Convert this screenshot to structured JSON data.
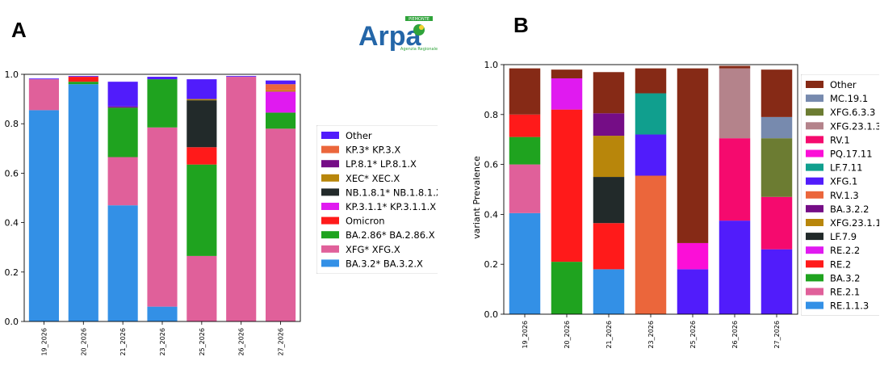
{
  "logo": {
    "text": "Arpa",
    "top_text": "PIEMONTE",
    "bottom_text": "Agenzia Regionale"
  },
  "chart_data": [
    {
      "panel": "A",
      "type": "bar",
      "stacked": true,
      "categories": [
        "19_2026",
        "20_2026",
        "21_2026",
        "23_2026",
        "25_2026",
        "26_2026",
        "27_2026"
      ],
      "ylim": [
        0,
        1.0
      ],
      "yticks": [
        "0.0",
        "0.2",
        "0.4",
        "0.6",
        "0.8",
        "1.0"
      ],
      "ylabel": "",
      "legend_position": "right",
      "series": [
        {
          "name": "BA.3.2* BA.3.2.X",
          "color": "#3390E6",
          "values": [
            0.855,
            0.96,
            0.47,
            0.06,
            0,
            0,
            0
          ]
        },
        {
          "name": "XFG* XFG.X",
          "color": "#E0609A",
          "values": [
            0.125,
            0,
            0.195,
            0.725,
            0.265,
            0.99,
            0.78
          ]
        },
        {
          "name": "BA.2.86* BA.2.86.X",
          "color": "#1FA31F",
          "values": [
            0,
            0.01,
            0.2,
            0.195,
            0.37,
            0,
            0.065
          ]
        },
        {
          "name": "Omicron",
          "color": "#FF1A1A",
          "values": [
            0,
            0.02,
            0,
            0,
            0.07,
            0,
            0
          ]
        },
        {
          "name": "KP.3.1.1* KP.3.1.1.X",
          "color": "#E01AF0",
          "values": [
            0,
            0,
            0,
            0,
            0,
            0,
            0.085
          ]
        },
        {
          "name": "NB.1.8.1* NB.1.8.1.X",
          "color": "#222A2A",
          "values": [
            0,
            0,
            0,
            0,
            0.19,
            0,
            0
          ]
        },
        {
          "name": "XEC* XEC.X",
          "color": "#B8860B",
          "values": [
            0,
            0,
            0,
            0,
            0.005,
            0,
            0.005
          ]
        },
        {
          "name": "LP.8.1* LP.8.1.X",
          "color": "#750D86",
          "values": [
            0,
            0,
            0.005,
            0,
            0,
            0,
            0
          ]
        },
        {
          "name": "KP.3* KP.3.X",
          "color": "#EB663B",
          "values": [
            0,
            0,
            0,
            0,
            0,
            0,
            0.025
          ]
        },
        {
          "name": "Other",
          "color": "#511CFB",
          "values": [
            0.003,
            0.003,
            0.1,
            0.01,
            0.08,
            0.003,
            0.015
          ]
        }
      ]
    },
    {
      "panel": "B",
      "type": "bar",
      "stacked": true,
      "categories": [
        "19_2026",
        "20_2026",
        "21_2026",
        "23_2026",
        "25_2026",
        "26_2026",
        "27_2026"
      ],
      "ylim": [
        0,
        1.0
      ],
      "yticks": [
        "0.0",
        "0.2",
        "0.4",
        "0.6",
        "0.8",
        "1.0"
      ],
      "ylabel": "variant Prevalence",
      "legend_position": "right",
      "series": [
        {
          "name": "RE.1.1.3",
          "color": "#3390E6",
          "values": [
            0.405,
            0,
            0.18,
            0,
            0,
            0,
            0
          ]
        },
        {
          "name": "RE.2.1",
          "color": "#E0609A",
          "values": [
            0.195,
            0,
            0,
            0,
            0,
            0,
            0
          ]
        },
        {
          "name": "BA.3.2",
          "color": "#1FA31F",
          "values": [
            0.11,
            0.21,
            0,
            0,
            0,
            0,
            0
          ]
        },
        {
          "name": "RE.2",
          "color": "#FF1A1A",
          "values": [
            0.09,
            0.61,
            0.185,
            0,
            0,
            0,
            0
          ]
        },
        {
          "name": "RE.2.2",
          "color": "#E01AF0",
          "values": [
            0,
            0.125,
            0,
            0,
            0,
            0,
            0
          ]
        },
        {
          "name": "LF.7.9",
          "color": "#222A2A",
          "values": [
            0,
            0,
            0.185,
            0,
            0,
            0,
            0
          ]
        },
        {
          "name": "XFG.23.1.1",
          "color": "#B8860B",
          "values": [
            0,
            0,
            0.165,
            0,
            0,
            0,
            0
          ]
        },
        {
          "name": "BA.3.2.2",
          "color": "#750D86",
          "values": [
            0,
            0,
            0.09,
            0,
            0,
            0,
            0
          ]
        },
        {
          "name": "RV.1.3",
          "color": "#EB663B",
          "values": [
            0,
            0,
            0,
            0.555,
            0,
            0,
            0
          ]
        },
        {
          "name": "XFG.1",
          "color": "#511CFB",
          "values": [
            0,
            0,
            0,
            0.165,
            0.18,
            0.375,
            0.26
          ]
        },
        {
          "name": "LF.7.11",
          "color": "#109F8E",
          "values": [
            0,
            0,
            0,
            0.165,
            0,
            0,
            0
          ]
        },
        {
          "name": "PQ.17.11",
          "color": "#FB0FD7",
          "values": [
            0,
            0,
            0,
            0,
            0.105,
            0,
            0
          ]
        },
        {
          "name": "RV.1",
          "color": "#F50A6E",
          "values": [
            0,
            0,
            0,
            0,
            0,
            0.33,
            0.21
          ]
        },
        {
          "name": "XFG.23.1.3",
          "color": "#B4838B",
          "values": [
            0,
            0,
            0,
            0,
            0,
            0.28,
            0
          ]
        },
        {
          "name": "XFG.6.3.3",
          "color": "#6C7C32",
          "values": [
            0,
            0,
            0,
            0,
            0,
            0,
            0.235
          ]
        },
        {
          "name": "MC.19.1",
          "color": "#778AAE",
          "values": [
            0,
            0,
            0,
            0,
            0,
            0,
            0.085
          ]
        },
        {
          "name": "Other",
          "color": "#862A16",
          "values": [
            0.185,
            0.035,
            0.165,
            0.1,
            0.7,
            0.01,
            0.19
          ]
        }
      ]
    }
  ]
}
